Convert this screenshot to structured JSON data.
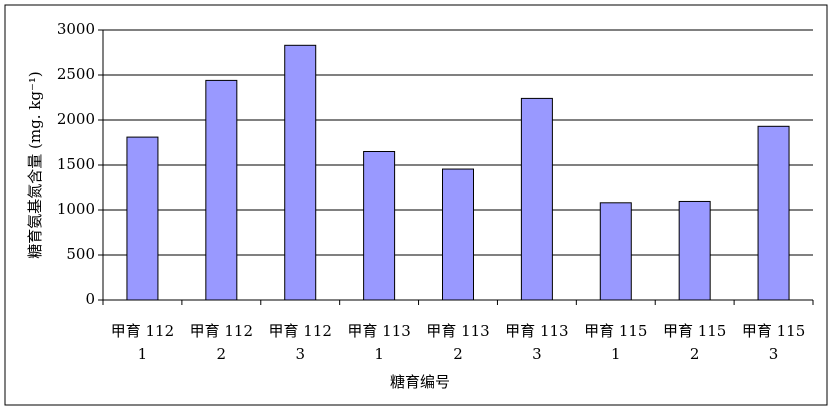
{
  "chart_data": {
    "type": "bar",
    "categories": [
      [
        "甲育 112",
        "1"
      ],
      [
        "甲育 112",
        "2"
      ],
      [
        "甲育 112",
        "3"
      ],
      [
        "甲育 113",
        "1"
      ],
      [
        "甲育 113",
        "2"
      ],
      [
        "甲育 113",
        "3"
      ],
      [
        "甲育 115",
        "1"
      ],
      [
        "甲育 115",
        "2"
      ],
      [
        "甲育 115",
        "3"
      ]
    ],
    "values": [
      1810,
      2440,
      2830,
      1650,
      1455,
      2240,
      1080,
      1095,
      1930
    ],
    "color": "#9999ff",
    "ylim": [
      0,
      3000
    ],
    "yticks": [
      0,
      500,
      1000,
      1500,
      2000,
      2500,
      3000
    ],
    "grid": true,
    "x_label": "糖育编号",
    "y_label": "糖育氨基氮含量 (mg. kg⁻¹)"
  }
}
